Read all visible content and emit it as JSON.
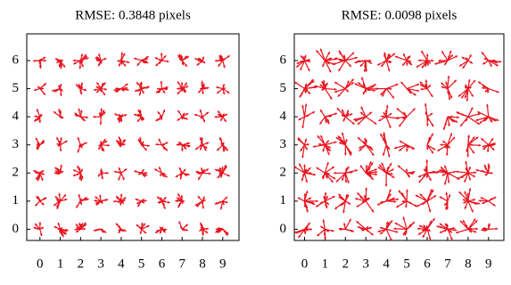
{
  "chart_data": [
    {
      "type": "quiver",
      "title": "RMSE: 0.3848 pixels",
      "xlim": [
        -0.65,
        9.8
      ],
      "ylim": [
        -0.4,
        6.95
      ],
      "xticks": [
        0,
        1,
        2,
        3,
        4,
        5,
        6,
        7,
        8,
        9
      ],
      "yticks": [
        0,
        1,
        2,
        3,
        4,
        5,
        6
      ],
      "color": "#e8141e"
    },
    {
      "type": "quiver",
      "title": "RMSE: 0.0098 pixels",
      "xlim": [
        -0.5,
        9.75
      ],
      "ylim": [
        -0.4,
        6.95
      ],
      "xticks": [
        0,
        1,
        2,
        3,
        4,
        5,
        6,
        7,
        8,
        9
      ],
      "yticks": [
        0,
        1,
        2,
        3,
        4,
        5,
        6
      ],
      "color": "#e8141e"
    }
  ]
}
